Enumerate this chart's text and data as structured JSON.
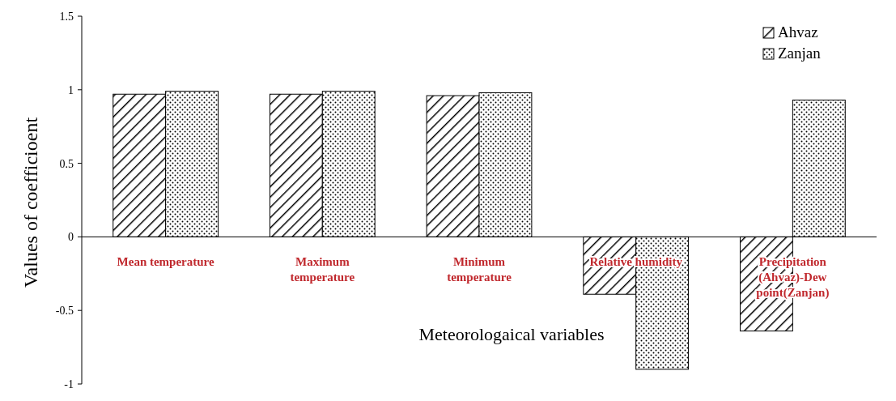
{
  "chart_data": {
    "type": "bar",
    "xlabel": "Meteorologaical variables",
    "ylabel": "Values of coefficioent",
    "categories": [
      "Mean temperature",
      "Maximum temperature",
      "Minimum temperature",
      "Relative humidity",
      "Precipitation (Ahvaz)-Dew point(Zanjan)"
    ],
    "series": [
      {
        "name": "Ahvaz",
        "color": "#000000",
        "values": [
          0.97,
          0.97,
          0.96,
          -0.39,
          -0.64
        ]
      },
      {
        "name": "Zanjan",
        "color": "#000000",
        "values": [
          0.99,
          0.99,
          0.98,
          -0.9,
          0.93
        ]
      }
    ],
    "ylim": [
      -1,
      1.5
    ],
    "yticks": [
      -1,
      -0.5,
      0,
      0.5,
      1,
      1.5
    ],
    "grid": false,
    "legend": "top right"
  }
}
